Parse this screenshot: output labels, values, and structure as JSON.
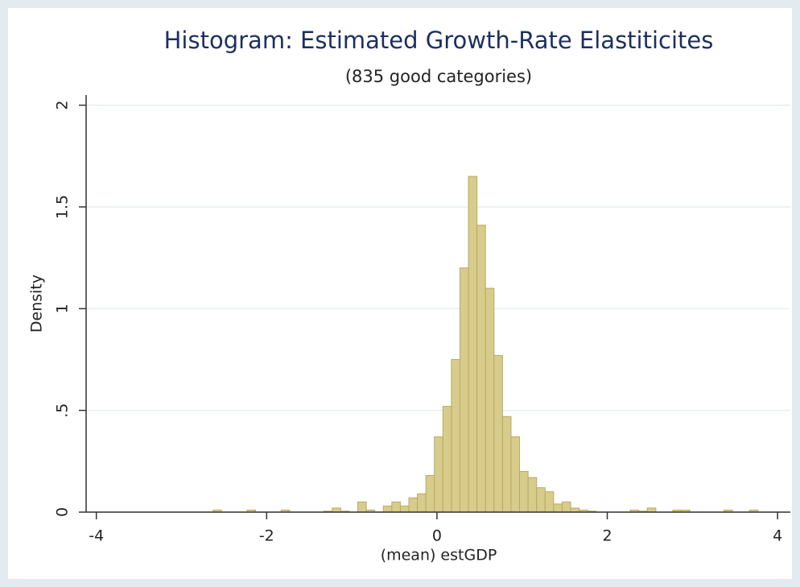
{
  "chart_data": {
    "type": "histogram",
    "title": "Histogram: Estimated Growth-Rate Elastiticites",
    "subtitle": "(835 good categories)",
    "x_label": "(mean) estGDP",
    "y_label": "Density",
    "bins": [
      -2.63,
      -2.53,
      -2.43,
      -2.33,
      -2.23,
      -2.13,
      -2.03,
      -1.93,
      -1.83,
      -1.73,
      -1.63,
      -1.53,
      -1.43,
      -1.33,
      -1.23,
      -1.13,
      -1.03,
      -0.93,
      -0.83,
      -0.73,
      -0.63,
      -0.53,
      -0.43,
      -0.33,
      -0.23,
      -0.13,
      -0.03,
      0.07,
      0.17,
      0.27,
      0.37,
      0.47,
      0.57,
      0.67,
      0.77,
      0.87,
      0.97,
      1.07,
      1.17,
      1.27,
      1.37,
      1.47,
      1.57,
      1.67,
      1.77,
      1.87,
      1.97,
      2.07,
      2.17,
      2.27,
      2.37,
      2.47,
      2.57,
      2.67,
      2.77,
      2.87,
      2.97,
      3.07,
      3.17,
      3.27,
      3.37,
      3.47,
      3.57,
      3.67,
      3.77
    ],
    "values": [
      0.01,
      0,
      0,
      0,
      0.01,
      0,
      0,
      0,
      0.01,
      0,
      0,
      0,
      0,
      0.005,
      0.02,
      0.005,
      0,
      0.05,
      0.01,
      0,
      0.03,
      0.05,
      0.03,
      0.07,
      0.09,
      0.18,
      0.37,
      0.52,
      0.75,
      1.2,
      1.65,
      1.41,
      1.1,
      0.77,
      0.47,
      0.37,
      0.2,
      0.17,
      0.12,
      0.1,
      0.04,
      0.05,
      0.02,
      0.01,
      0.005,
      0,
      0,
      0,
      0,
      0.01,
      0.005,
      0.02,
      0,
      0,
      0.01,
      0.01,
      0,
      0,
      0,
      0,
      0.01,
      0,
      0,
      0.01
    ],
    "color": "#d8cc8c",
    "xlim": [
      -4.12,
      4.15
    ],
    "xticks": [
      -4,
      -2,
      0,
      2,
      4
    ],
    "ylim": [
      0,
      2.05
    ],
    "yticks": [
      0,
      {
        "value": 0.5,
        "label": ".5"
      },
      1,
      1.5,
      2
    ],
    "grid": true
  }
}
